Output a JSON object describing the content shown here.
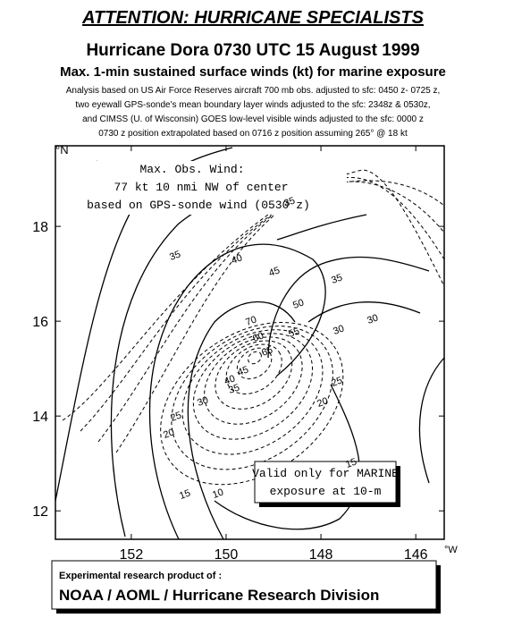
{
  "header": {
    "banner": "ATTENTION: HURRICANE SPECIALISTS",
    "title": "Hurricane Dora 0730 UTC 15 August 1999",
    "subtitle": "Max. 1-min sustained surface winds (kt) for marine exposure",
    "notes": [
      "Analysis based on US Air Force Reserves aircraft 700 mb obs. adjusted to sfc: 0450 z- 0725 z,",
      "two eyewall GPS-sonde's mean boundary layer winds adjusted to the sfc: 2348z & 0530z,",
      "and CIMSS (U. of Wisconsin) GOES low-level visible winds adjusted to the sfc: 0000 z",
      "0730 z position extrapolated based on 0716 z position assuming 265° @ 18 kt"
    ]
  },
  "map": {
    "lat_range": [
      11.4,
      19.7
    ],
    "lon_range": [
      153.6,
      145.4
    ],
    "lat_ticks": [
      12,
      14,
      16,
      18
    ],
    "lon_ticks": [
      152,
      150,
      148,
      146
    ],
    "lat_unit": "°N",
    "lon_unit": "°W",
    "max_wind_note": [
      "Max. Obs. Wind:",
      "77 kt 10 nmi NW of center",
      "based on GPS-sonde wind (0530 z)"
    ],
    "valid_note": [
      "Valid only for MARINE",
      "exposure at 10-m"
    ],
    "contour_labels": [
      "35",
      "40",
      "45",
      "35",
      "30",
      "50",
      "55",
      "60",
      "70",
      "65",
      "45",
      "40",
      "35",
      "30",
      "25",
      "20",
      "15",
      "10",
      "15",
      "20",
      "25",
      "30",
      "35"
    ]
  },
  "footer": {
    "line1": "Experimental research product of :",
    "line2": "NOAA / AOML / Hurricane Research Division"
  }
}
